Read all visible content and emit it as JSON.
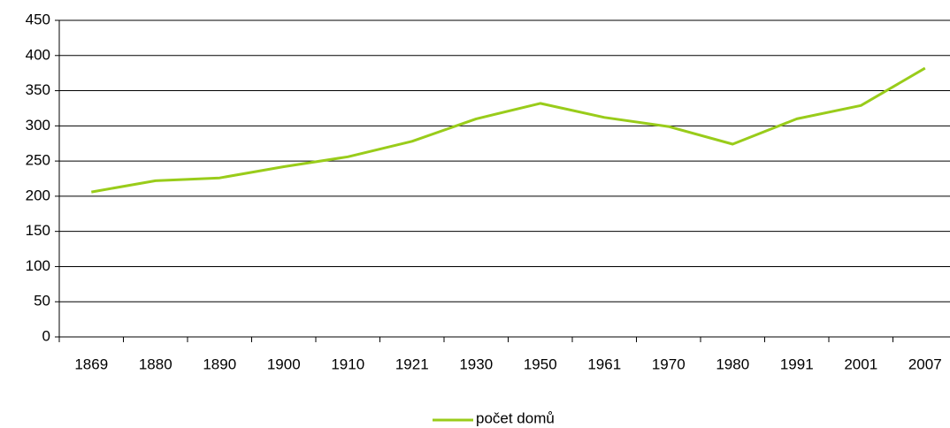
{
  "chart_data": {
    "type": "line",
    "categories": [
      "1869",
      "1880",
      "1890",
      "1900",
      "1910",
      "1921",
      "1930",
      "1950",
      "1961",
      "1970",
      "1980",
      "1991",
      "2001",
      "2007"
    ],
    "series": [
      {
        "name": "počet domů",
        "color": "#99cc1a",
        "values": [
          206,
          222,
          226,
          242,
          256,
          278,
          310,
          332,
          312,
          299,
          274,
          310,
          329,
          382
        ]
      }
    ],
    "ylim": [
      0,
      450
    ],
    "yticks": [
      0,
      50,
      100,
      150,
      200,
      250,
      300,
      350,
      400,
      450
    ],
    "grid": true,
    "legend": "bottom"
  }
}
